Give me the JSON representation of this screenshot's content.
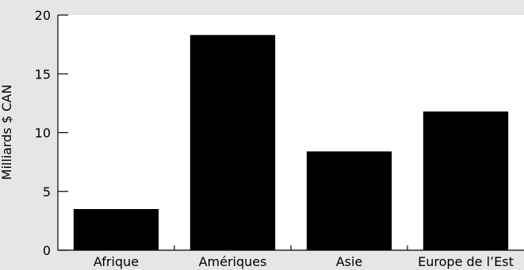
{
  "chart_data": {
    "type": "bar",
    "title": "",
    "xlabel": "",
    "ylabel": "Milliards $ CAN",
    "categories": [
      "Afrique",
      "Amériques",
      "Asie",
      "Europe de l’Est"
    ],
    "values": [
      3.5,
      18.3,
      8.4,
      11.8
    ],
    "ylim": [
      0,
      20
    ],
    "yticks": [
      0,
      5,
      10,
      15,
      20
    ],
    "grid": false,
    "legend": "none",
    "colors": {
      "background": "#e6e6e6",
      "plot_background": "#ffffff",
      "bar": "#000000",
      "axis": "#000000"
    }
  }
}
